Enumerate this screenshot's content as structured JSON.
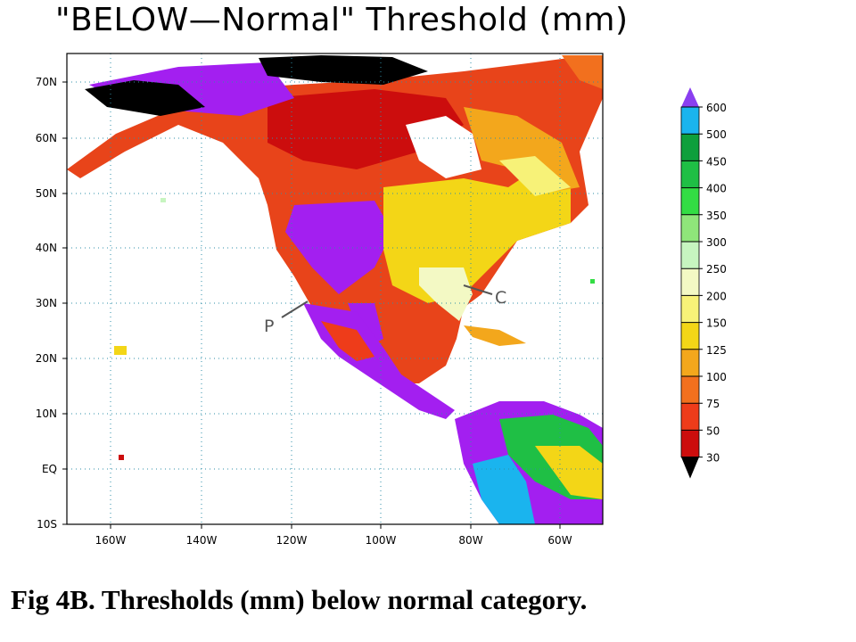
{
  "title": "\"BELOW—Normal\" Threshold (mm)",
  "caption": "Fig 4B. Thresholds (mm) below normal category.",
  "map": {
    "lat_labels": [
      "70N",
      "60N",
      "50N",
      "40N",
      "30N",
      "20N",
      "10N",
      "EQ",
      "10S"
    ],
    "lon_labels": [
      "160W",
      "140W",
      "120W",
      "100W",
      "80W",
      "60W"
    ],
    "annotations": [
      {
        "label": "P",
        "name": "annotation-p"
      },
      {
        "label": "C",
        "name": "annotation-c"
      }
    ]
  },
  "colorbar": {
    "levels": [
      "600",
      "500",
      "450",
      "400",
      "350",
      "300",
      "250",
      "200",
      "150",
      "125",
      "100",
      "75",
      "50",
      "30"
    ],
    "colors": [
      "#8a3ff0",
      "#1ab4ee",
      "#0e9f3c",
      "#1fbf45",
      "#33dd44",
      "#8fe57a",
      "#c7f5c0",
      "#f3f9c4",
      "#f7f278",
      "#f3d617",
      "#f3a71c",
      "#f2701e",
      "#ee3c1a",
      "#cc0d0d",
      "#a31ff0",
      "#000000"
    ]
  }
}
